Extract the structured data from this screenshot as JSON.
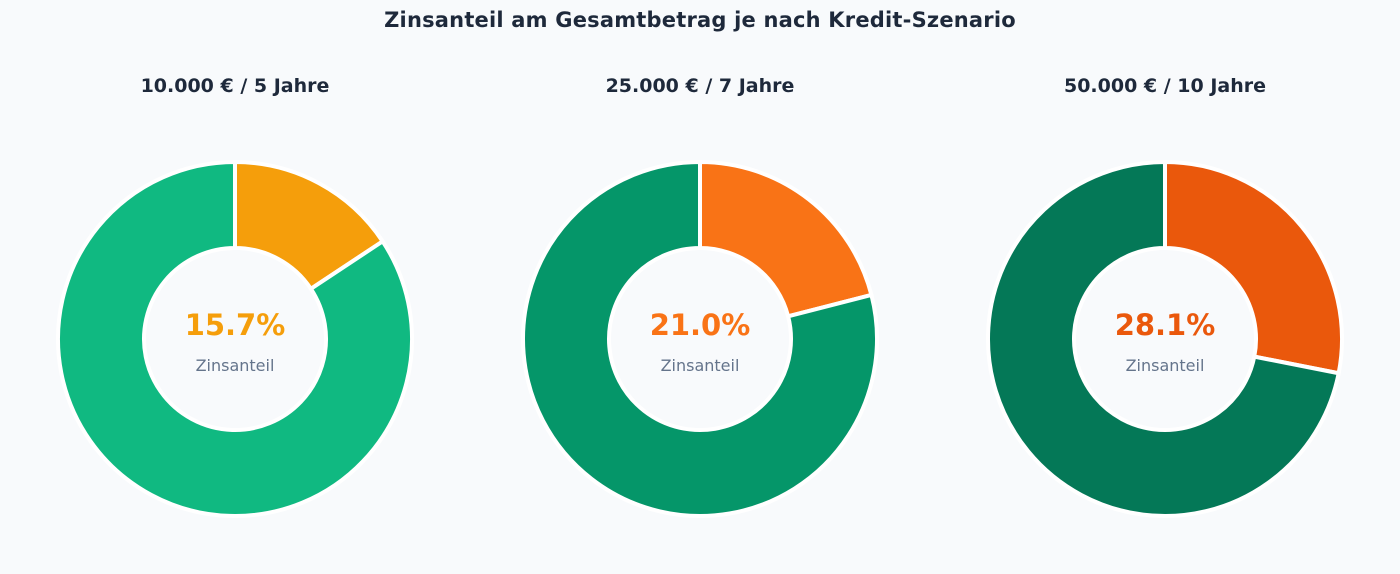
{
  "title": "Zinsanteil am Gesamtbetrag je nach Kredit-Szenario",
  "chart_data": [
    {
      "type": "pie",
      "variant": "donut",
      "title": "10.000 € / 5 Jahre",
      "slices": [
        {
          "value": 15.7,
          "color": "#f59e0b"
        },
        {
          "value": 84.3,
          "color": "#10b981"
        }
      ],
      "center_value": "15.7%",
      "center_value_color": "#f59e0b",
      "center_label": "Zinsanteil"
    },
    {
      "type": "pie",
      "variant": "donut",
      "title": "25.000 € / 7 Jahre",
      "slices": [
        {
          "value": 21.0,
          "color": "#f97316"
        },
        {
          "value": 79.0,
          "color": "#059669"
        }
      ],
      "center_value": "21.0%",
      "center_value_color": "#f97316",
      "center_label": "Zinsanteil"
    },
    {
      "type": "pie",
      "variant": "donut",
      "title": "50.000 € / 10 Jahre",
      "slices": [
        {
          "value": 28.1,
          "color": "#ea580c"
        },
        {
          "value": 71.9,
          "color": "#047857"
        }
      ],
      "center_value": "28.1%",
      "center_value_color": "#ea580c",
      "center_label": "Zinsanteil"
    }
  ]
}
